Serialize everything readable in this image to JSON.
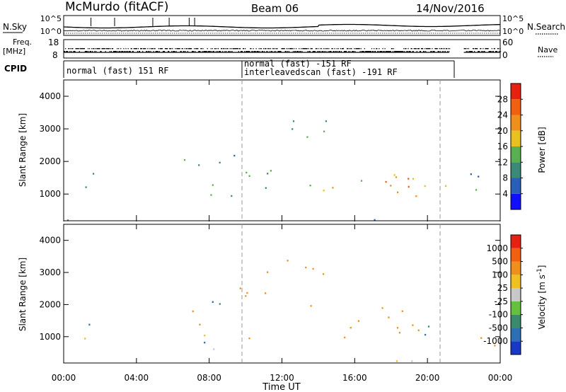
{
  "header": {
    "station": "McMurdo (fitACF)",
    "beam": "Beam 06",
    "date": "14/Nov/2016"
  },
  "noise_panel": {
    "left_label": "N.Sky",
    "right_label": "N.Search",
    "left_ticks": [
      "10^5",
      "10^0"
    ],
    "right_ticks": [
      "10^5",
      "10^0"
    ]
  },
  "freq_panel": {
    "left_label_1": "Freq.",
    "left_label_2": "[MHz]",
    "right_label": "Nave",
    "left_ticks": [
      "18",
      "8"
    ],
    "right_ticks": [
      "60",
      "0"
    ]
  },
  "cpid_panel": {
    "label": "CPID",
    "segments": [
      "normal (fast) 151 RF",
      "normal (fast) -151 RF",
      "interleavedscan (fast) -191 RF"
    ]
  },
  "time_axis": {
    "title": "Time UT",
    "ticks": [
      "00:00",
      "04:00",
      "08:00",
      "12:00",
      "16:00",
      "20:00",
      "00:00"
    ]
  },
  "power_panel": {
    "ylabel": "Slant Range [km]",
    "yticks": [
      "1000",
      "2000",
      "3000",
      "4000"
    ],
    "cbar_label": "Power [dB]",
    "cbar_ticks": [
      "4",
      "8",
      "12",
      "16",
      "20",
      "24",
      "28"
    ],
    "cbar_colors": [
      "#1010ff",
      "#2a5fb8",
      "#3a8a78",
      "#58b050",
      "#e8c020",
      "#f0901c",
      "#f06010",
      "#e82010"
    ]
  },
  "velocity_panel": {
    "ylabel": "Slant Range [km]",
    "yticks": [
      "1000",
      "2000",
      "3000",
      "4000"
    ],
    "cbar_label": "Velocity [m s^-1]",
    "cbar_ticks": [
      "1000",
      "500",
      "100",
      "25",
      "-25",
      "-100",
      "-500",
      "-1000"
    ],
    "cbar_colors": [
      "#1838c8",
      "#2c6fb4",
      "#3a8a6e",
      "#66c040",
      "#c8c8c8",
      "#f0c020",
      "#f0901c",
      "#f06010",
      "#e82010"
    ]
  },
  "chart_data": [
    {
      "type": "heatmap",
      "title": "McMurdo (fitACF) Beam 06 14/Nov/2016",
      "xlabel": "Time UT",
      "ylabel": "Slant Range [km]",
      "xlim_hours": [
        0,
        24
      ],
      "ylim_km": [
        180,
        4500
      ],
      "colorbar": "Power [dB]",
      "clim": [
        0,
        32
      ],
      "data_gap_hours": [
        21.2,
        22.0
      ],
      "scatter_regions": [
        {
          "t": [
            0.4,
            1.6
          ],
          "r": [
            900,
            2000
          ],
          "value": 10
        },
        {
          "t": [
            3.6,
            4.2
          ],
          "r": [
            800,
            1100
          ],
          "value": 10
        },
        {
          "t": [
            6.4,
            7.6
          ],
          "r": [
            1100,
            2200
          ],
          "value": 12
        },
        {
          "t": [
            7.6,
            9.6
          ],
          "r": [
            600,
            2500
          ],
          "value": 10
        },
        {
          "t": [
            9.6,
            11.4
          ],
          "r": [
            900,
            2700
          ],
          "value": 12
        },
        {
          "t": [
            11.0,
            15.0
          ],
          "r": [
            2700,
            3500
          ],
          "value": 12
        },
        {
          "t": [
            13.5,
            16.5
          ],
          "r": [
            1000,
            2000
          ],
          "value": 18
        },
        {
          "t": [
            16.0,
            19.5
          ],
          "r": [
            700,
            2000
          ],
          "value": 22
        },
        {
          "t": [
            17.8,
            19.2
          ],
          "r": [
            700,
            1500
          ],
          "value": 28
        },
        {
          "t": [
            19.5,
            21.2
          ],
          "r": [
            700,
            1700
          ],
          "value": 16
        },
        {
          "t": [
            22.2,
            24.0
          ],
          "r": [
            700,
            1700
          ],
          "value": 10
        },
        {
          "t": [
            0.0,
            21.2
          ],
          "r": [
            180,
            300
          ],
          "value": 6
        }
      ]
    },
    {
      "type": "heatmap",
      "xlabel": "Time UT",
      "ylabel": "Slant Range [km]",
      "xlim_hours": [
        0,
        24
      ],
      "ylim_km": [
        180,
        4500
      ],
      "colorbar": "Velocity [m s^-1]",
      "clim": [
        -1000,
        1000
      ],
      "data_gap_hours": [
        21.2,
        22.0
      ],
      "scatter_regions": [
        {
          "t": [
            0.4,
            1.6
          ],
          "r": [
            900,
            2000
          ],
          "value": 100
        },
        {
          "t": [
            3.6,
            4.2
          ],
          "r": [
            800,
            1100
          ],
          "value": 100
        },
        {
          "t": [
            6.4,
            7.6
          ],
          "r": [
            1100,
            2200
          ],
          "value": -300
        },
        {
          "t": [
            7.6,
            9.6
          ],
          "r": [
            600,
            2500
          ],
          "value": 100
        },
        {
          "t": [
            9.6,
            11.4
          ],
          "r": [
            900,
            2700
          ],
          "value": -300
        },
        {
          "t": [
            11.0,
            15.0
          ],
          "r": [
            2700,
            3500
          ],
          "value": -300
        },
        {
          "t": [
            13.5,
            16.5
          ],
          "r": [
            1000,
            2000
          ],
          "value": -300
        },
        {
          "t": [
            16.0,
            19.5
          ],
          "r": [
            700,
            2000
          ],
          "value": -300
        },
        {
          "t": [
            19.5,
            21.2
          ],
          "r": [
            700,
            1700
          ],
          "value": 0
        },
        {
          "t": [
            22.2,
            24.0
          ],
          "r": [
            700,
            1700
          ],
          "value": -200
        },
        {
          "t": [
            0.0,
            21.2
          ],
          "r": [
            180,
            300
          ],
          "value": -60
        }
      ]
    }
  ]
}
